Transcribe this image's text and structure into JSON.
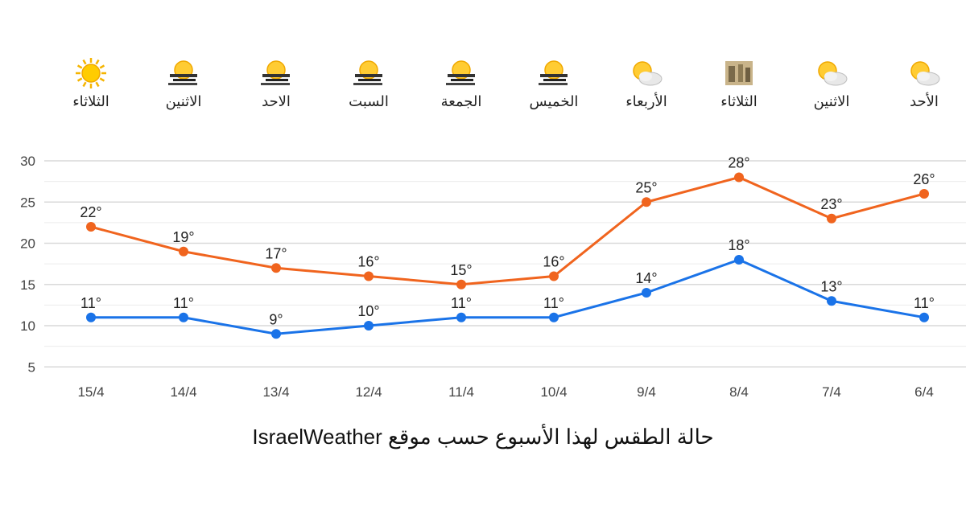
{
  "days": [
    {
      "label": "الثلاثاء",
      "icon": "sun-icon"
    },
    {
      "label": "الاثنين",
      "icon": "sun-haze-icon"
    },
    {
      "label": "الاحد",
      "icon": "sun-haze-icon"
    },
    {
      "label": "السبت",
      "icon": "sun-haze-icon"
    },
    {
      "label": "الجمعة",
      "icon": "sun-haze-icon"
    },
    {
      "label": "الخميس",
      "icon": "sun-haze-icon"
    },
    {
      "label": "الأربعاء",
      "icon": "partly-cloudy-icon"
    },
    {
      "label": "الثلاثاء",
      "icon": "dust-icon"
    },
    {
      "label": "الاثنين",
      "icon": "partly-cloudy-icon"
    },
    {
      "label": "الأحد",
      "icon": "partly-cloudy-icon"
    }
  ],
  "chart_data": {
    "type": "line",
    "categories": [
      "15/4",
      "14/4",
      "13/4",
      "12/4",
      "11/4",
      "10/4",
      "9/4",
      "8/4",
      "7/4",
      "6/4"
    ],
    "series": [
      {
        "values": [
          22,
          19,
          17,
          16,
          15,
          16,
          25,
          28,
          23,
          26
        ],
        "color": "#f0641e",
        "labels": [
          "22°",
          "19°",
          "17°",
          "16°",
          "15°",
          "16°",
          "25°",
          "28°",
          "23°",
          "26°"
        ]
      },
      {
        "values": [
          11,
          11,
          9,
          10,
          11,
          11,
          14,
          18,
          13,
          11
        ],
        "color": "#1a73e8",
        "labels": [
          "11°",
          "11°",
          "9°",
          "10°",
          "11°",
          "11°",
          "14°",
          "18°",
          "13°",
          "11°"
        ]
      }
    ],
    "yticks": [
      5,
      10,
      15,
      20,
      25,
      30
    ],
    "ylim": [
      3,
      32
    ],
    "grid": true,
    "legend": "none",
    "gridline_color": "#d9d9d9"
  },
  "caption": "حالة الطقس لهذا الأسبوع حسب موقع IsraelWeather"
}
